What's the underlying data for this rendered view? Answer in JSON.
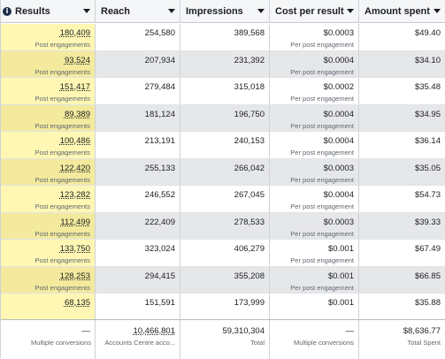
{
  "columns": [
    {
      "label": "Results"
    },
    {
      "label": "Reach"
    },
    {
      "label": "Impressions"
    },
    {
      "label": "Cost per result"
    },
    {
      "label": "Amount spent"
    }
  ],
  "rows": [
    {
      "results": "180,409",
      "results_sub": "Post engagements",
      "reach": "254,580",
      "impressions": "389,568",
      "cost": "$0.0003",
      "cost_sub": "Per post engagement",
      "spent": "$49.40"
    },
    {
      "results": "93,524",
      "results_sub": "Post engagements",
      "reach": "207,934",
      "impressions": "231,392",
      "cost": "$0.0004",
      "cost_sub": "Per post engagement",
      "spent": "$34.10"
    },
    {
      "results": "151,417",
      "results_sub": "Post engagements",
      "reach": "279,484",
      "impressions": "315,018",
      "cost": "$0.0002",
      "cost_sub": "Per post engagement",
      "spent": "$35.48"
    },
    {
      "results": "89,389",
      "results_sub": "Post engagements",
      "reach": "181,124",
      "impressions": "196,750",
      "cost": "$0.0004",
      "cost_sub": "Per post engagement",
      "spent": "$34.95"
    },
    {
      "results": "100,486",
      "results_sub": "Post engagements",
      "reach": "213,191",
      "impressions": "240,153",
      "cost": "$0.0004",
      "cost_sub": "Per post engagement",
      "spent": "$36.14"
    },
    {
      "results": "122,420",
      "results_sub": "Post engagements",
      "reach": "255,133",
      "impressions": "266,042",
      "cost": "$0.0003",
      "cost_sub": "Per post engagement",
      "spent": "$35.05"
    },
    {
      "results": "123,282",
      "results_sub": "Post engagements",
      "reach": "246,552",
      "impressions": "267,045",
      "cost": "$0.0004",
      "cost_sub": "Per post engagement",
      "spent": "$54.73"
    },
    {
      "results": "112,499",
      "results_sub": "Post engagements",
      "reach": "222,409",
      "impressions": "278,533",
      "cost": "$0.0003",
      "cost_sub": "Per post engagement",
      "spent": "$39.33"
    },
    {
      "results": "133,750",
      "results_sub": "Post engagements",
      "reach": "323,024",
      "impressions": "406,279",
      "cost": "$0.001",
      "cost_sub": "Per post engagement",
      "spent": "$67.49"
    },
    {
      "results": "128,253",
      "results_sub": "Post engagements",
      "reach": "294,415",
      "impressions": "355,208",
      "cost": "$0.001",
      "cost_sub": "Per post engagement",
      "spent": "$66.85"
    },
    {
      "results": "68,135",
      "results_sub": "",
      "reach": "151,591",
      "impressions": "173,999",
      "cost": "$0.001",
      "cost_sub": "",
      "spent": "$35.88"
    }
  ],
  "totals": {
    "results": "—",
    "results_sub": "Multiple conversions",
    "reach": "10,466,801",
    "reach_sub": "Accounts Centre acco...",
    "impressions": "59,310,304",
    "impressions_sub": "Total",
    "cost": "—",
    "cost_sub": "Multiple conversions",
    "spent": "$8,636.77",
    "spent_sub": "Total Spent"
  },
  "colors": {
    "highlight": "#fff7b3",
    "info_icon": "#1c2b4a"
  },
  "icons": {
    "info": "i"
  }
}
